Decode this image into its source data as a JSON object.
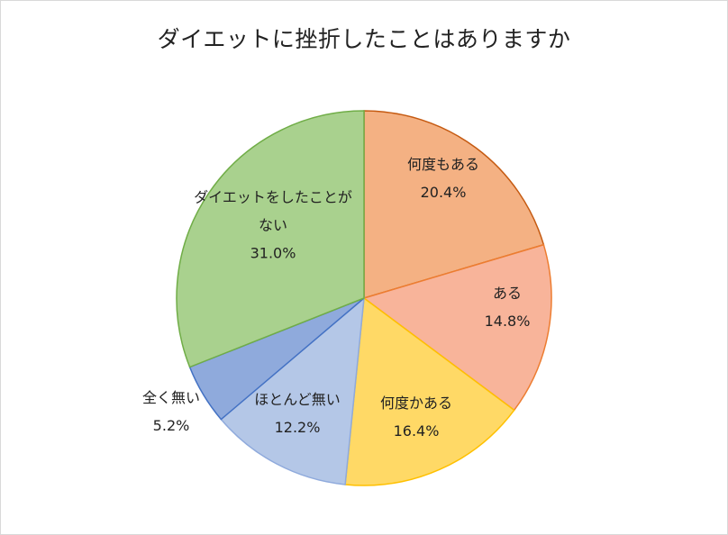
{
  "chart_data": {
    "type": "pie",
    "title": "ダイエットに挫折したことはありますか",
    "start_angle_deg": 0,
    "direction": "clockwise",
    "slices": [
      {
        "label": "何度もある",
        "label_lines": [
          "何度もある"
        ],
        "value": 20.4,
        "value_label": "20.4%",
        "color": "#f4b183",
        "edge": "#c55a11"
      },
      {
        "label": "ある",
        "label_lines": [
          "ある"
        ],
        "value": 14.8,
        "value_label": "14.8%",
        "color": "#f8b49a",
        "edge": "#ed7d31"
      },
      {
        "label": "何度かある",
        "label_lines": [
          "何度かある"
        ],
        "value": 16.4,
        "value_label": "16.4%",
        "color": "#ffd966",
        "edge": "#ffc000"
      },
      {
        "label": "ほとんど無い",
        "label_lines": [
          "ほとんど無い"
        ],
        "value": 12.2,
        "value_label": "12.2%",
        "color": "#b4c7e7",
        "edge": "#8faadc"
      },
      {
        "label": "全く無い",
        "label_lines": [
          "全く無い"
        ],
        "value": 5.2,
        "value_label": "5.2%",
        "color": "#8faadc",
        "edge": "#4472c4"
      },
      {
        "label": "ダイエットをしたことがない",
        "label_lines": [
          "ダイエットをしたことが",
          "ない"
        ],
        "value": 31.0,
        "value_label": "31.0%",
        "color": "#a9d18e",
        "edge": "#70ad47"
      }
    ]
  }
}
